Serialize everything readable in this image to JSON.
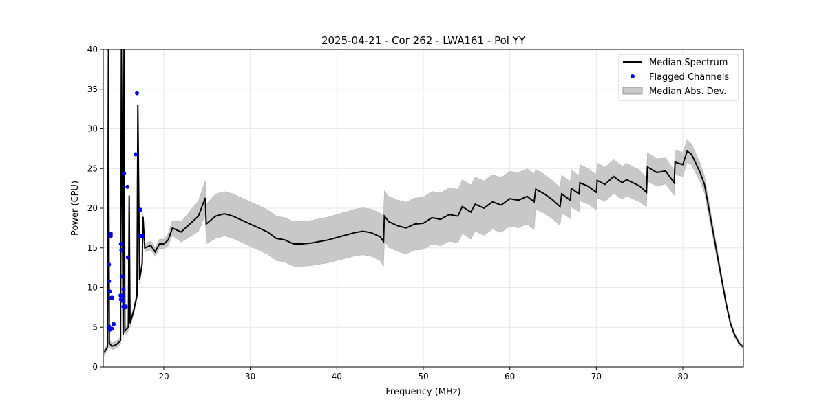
{
  "chart_data": {
    "type": "line",
    "title": "2025-04-21 - Cor 262 - LWA161 - Pol YY",
    "xlabel": "Frequency (MHz)",
    "ylabel": "Power (CPU)",
    "xlim": [
      13.0,
      87.0
    ],
    "ylim": [
      0,
      40
    ],
    "xticks": [
      20,
      30,
      40,
      50,
      60,
      70,
      80
    ],
    "yticks": [
      0,
      5,
      10,
      15,
      20,
      25,
      30,
      35,
      40
    ],
    "grid": true,
    "legend_position": "top-right",
    "legend": [
      "Median Spectrum",
      "Flagged Channels",
      "Median Abs. Dev."
    ],
    "colors": {
      "median": "#000000",
      "flagged": "#0000ff",
      "mad": "#c8c8c8"
    },
    "median": [
      [
        13.1,
        1.8
      ],
      [
        13.5,
        2.5
      ],
      [
        13.6,
        40
      ],
      [
        13.7,
        3
      ],
      [
        14,
        2.6
      ],
      [
        14.5,
        2.8
      ],
      [
        15,
        3.3
      ],
      [
        15.1,
        40
      ],
      [
        15.3,
        4
      ],
      [
        15.4,
        40
      ],
      [
        15.5,
        4.5
      ],
      [
        15.9,
        5
      ],
      [
        16,
        21.6
      ],
      [
        16.1,
        5.5
      ],
      [
        16.5,
        7
      ],
      [
        16.9,
        9
      ],
      [
        17,
        33
      ],
      [
        17.2,
        11
      ],
      [
        17.5,
        13
      ],
      [
        17.6,
        18.9
      ],
      [
        17.8,
        15
      ],
      [
        18.5,
        15.3
      ],
      [
        19,
        14.5
      ],
      [
        19.5,
        15.5
      ],
      [
        20,
        15.5
      ],
      [
        20.5,
        16
      ],
      [
        21,
        17.5
      ],
      [
        22,
        17
      ],
      [
        23,
        18
      ],
      [
        24,
        19
      ],
      [
        24.8,
        21.3
      ],
      [
        24.9,
        18
      ],
      [
        26,
        19
      ],
      [
        27,
        19.3
      ],
      [
        28,
        19
      ],
      [
        29,
        18.5
      ],
      [
        30,
        18
      ],
      [
        31,
        17.5
      ],
      [
        32,
        17
      ],
      [
        33,
        16.2
      ],
      [
        34,
        16
      ],
      [
        35,
        15.5
      ],
      [
        36,
        15.5
      ],
      [
        37,
        15.6
      ],
      [
        38,
        15.8
      ],
      [
        39,
        16
      ],
      [
        40,
        16.3
      ],
      [
        41,
        16.6
      ],
      [
        42,
        16.9
      ],
      [
        43,
        17.1
      ],
      [
        44,
        16.9
      ],
      [
        45,
        16.4
      ],
      [
        45.4,
        15.8
      ],
      [
        45.5,
        19
      ],
      [
        46,
        18.3
      ],
      [
        47,
        17.8
      ],
      [
        48,
        17.5
      ],
      [
        49,
        18
      ],
      [
        50,
        18.1
      ],
      [
        51,
        18.8
      ],
      [
        52,
        18.6
      ],
      [
        53,
        19.2
      ],
      [
        54,
        19
      ],
      [
        54.5,
        20.2
      ],
      [
        55.5,
        19.5
      ],
      [
        56,
        20.5
      ],
      [
        57,
        20
      ],
      [
        58,
        20.8
      ],
      [
        59,
        20.4
      ],
      [
        60,
        21.2
      ],
      [
        61,
        21
      ],
      [
        62,
        21.5
      ],
      [
        62.8,
        20.8
      ],
      [
        63,
        22.4
      ],
      [
        64,
        21.8
      ],
      [
        65,
        21
      ],
      [
        65.8,
        20.2
      ],
      [
        66,
        21.8
      ],
      [
        67,
        21
      ],
      [
        67.1,
        22.5
      ],
      [
        68,
        21.8
      ],
      [
        68.1,
        23.2
      ],
      [
        69,
        22.8
      ],
      [
        70,
        22
      ],
      [
        70.1,
        23.5
      ],
      [
        71,
        23
      ],
      [
        72,
        24
      ],
      [
        73,
        23.2
      ],
      [
        73.5,
        23.6
      ],
      [
        75,
        22.8
      ],
      [
        75.8,
        22
      ],
      [
        75.9,
        25.2
      ],
      [
        77,
        24.5
      ],
      [
        78,
        24.7
      ],
      [
        79,
        23.2
      ],
      [
        79.1,
        25.8
      ],
      [
        80,
        25.5
      ],
      [
        80.5,
        27.2
      ],
      [
        81,
        26.8
      ],
      [
        82,
        24.5
      ],
      [
        82.5,
        23
      ],
      [
        83,
        20
      ],
      [
        84,
        14
      ],
      [
        85,
        8
      ],
      [
        85.5,
        5.5
      ],
      [
        86,
        4
      ],
      [
        86.5,
        3
      ],
      [
        87,
        2.5
      ]
    ],
    "mad": [
      [
        13,
        0.4
      ],
      [
        20,
        0.6
      ],
      [
        24.8,
        2.2
      ],
      [
        25,
        2.8
      ],
      [
        35,
        2.8
      ],
      [
        45,
        3
      ],
      [
        45.5,
        3.2
      ],
      [
        55,
        3.4
      ],
      [
        62.8,
        3.5
      ],
      [
        63,
        2.5
      ],
      [
        75,
        2
      ],
      [
        76,
        1.8
      ],
      [
        80,
        1.5
      ],
      [
        83,
        1
      ],
      [
        85,
        0.4
      ],
      [
        87,
        0.2
      ]
    ],
    "flagged": [
      [
        13.66,
        12.9
      ],
      [
        13.66,
        10.8
      ],
      [
        13.74,
        9.5
      ],
      [
        13.87,
        16.8
      ],
      [
        13.87,
        16.5
      ],
      [
        13.95,
        8.7
      ],
      [
        14.03,
        8.7
      ],
      [
        13.66,
        5.1
      ],
      [
        13.79,
        4.7
      ],
      [
        14.0,
        4.8
      ],
      [
        14.2,
        5.4
      ],
      [
        15.05,
        15.5
      ],
      [
        15.1,
        14.7
      ],
      [
        15.2,
        11.4
      ],
      [
        15.35,
        9.8
      ],
      [
        15.0,
        9.0
      ],
      [
        15.25,
        9.0
      ],
      [
        15.05,
        8.5
      ],
      [
        15.3,
        8.3
      ],
      [
        15.35,
        7.6
      ],
      [
        15.6,
        7.6
      ],
      [
        15.4,
        24.4
      ],
      [
        15.8,
        22.7
      ],
      [
        15.85,
        13.8
      ],
      [
        16.75,
        26.8
      ],
      [
        16.9,
        34.5
      ],
      [
        17.3,
        19.8
      ],
      [
        17.3,
        16.5
      ],
      [
        17.55,
        16.5
      ]
    ]
  }
}
